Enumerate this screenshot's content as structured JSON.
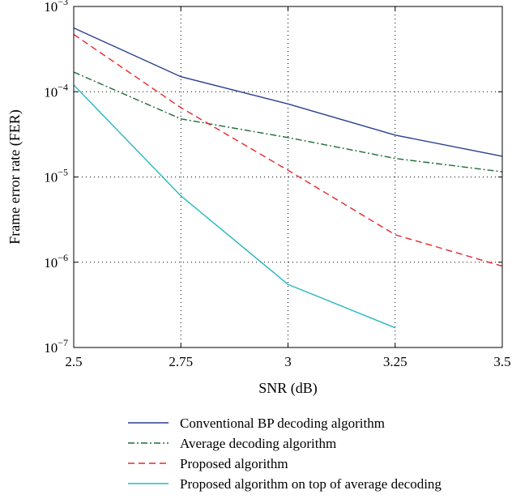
{
  "chart_data": {
    "type": "line",
    "xlabel": "SNR (dB)",
    "ylabel": "Frame error rate (FER)",
    "xlim": [
      2.5,
      3.5
    ],
    "ylim": [
      1e-07,
      0.001
    ],
    "yscale": "log",
    "grid": true,
    "legend_placement": "bottom",
    "x_ticks": [
      {
        "value": 2.5,
        "label": "2.5"
      },
      {
        "value": 2.75,
        "label": "2.75"
      },
      {
        "value": 3,
        "label": "3"
      },
      {
        "value": 3.25,
        "label": "3.25"
      },
      {
        "value": 3.5,
        "label": "3.5"
      }
    ],
    "y_ticks": [
      {
        "value": 1e-07,
        "base": "10",
        "exp": "−7"
      },
      {
        "value": 1e-06,
        "base": "10",
        "exp": "−6"
      },
      {
        "value": 1e-05,
        "base": "10",
        "exp": "−5"
      },
      {
        "value": 0.0001,
        "base": "10",
        "exp": "−4"
      },
      {
        "value": 0.001,
        "base": "10",
        "exp": "−3"
      }
    ],
    "series": [
      {
        "name": "Conventional BP decoding algorithm",
        "color": "#2a3f8f",
        "dash": "solid",
        "points": [
          [
            2.5,
            0.00056
          ],
          [
            2.75,
            0.00015
          ],
          [
            3,
            7.2e-05
          ],
          [
            3.25,
            3.1e-05
          ],
          [
            3.5,
            1.75e-05
          ]
        ]
      },
      {
        "name": "Average decoding algorithm",
        "color": "#1e6b3a",
        "dash": "dashdot",
        "points": [
          [
            2.5,
            0.00017
          ],
          [
            2.75,
            4.8e-05
          ],
          [
            3,
            2.9e-05
          ],
          [
            3.25,
            1.65e-05
          ],
          [
            3.5,
            1.15e-05
          ]
        ]
      },
      {
        "name": "Proposed algorithm",
        "color": "#e8262a",
        "dash": "dashed",
        "points": [
          [
            2.5,
            0.00047
          ],
          [
            2.75,
            6.5e-05
          ],
          [
            3,
            1.2e-05
          ],
          [
            3.25,
            2.1e-06
          ],
          [
            3.5,
            9e-07
          ]
        ]
      },
      {
        "name": "Proposed algorithm on top of average decoding",
        "color": "#27b8c0",
        "dash": "solid",
        "points": [
          [
            2.5,
            0.00012
          ],
          [
            2.75,
            6e-06
          ],
          [
            3,
            5.5e-07
          ],
          [
            3.25,
            1.7e-07
          ]
        ]
      }
    ]
  }
}
